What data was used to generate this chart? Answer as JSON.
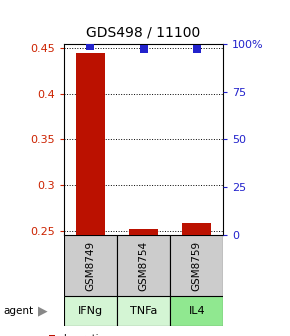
{
  "title": "GDS498 / 11100",
  "samples": [
    "GSM8749",
    "GSM8754",
    "GSM8759"
  ],
  "agents": [
    "IFNg",
    "TNFa",
    "IL4"
  ],
  "agent_colors": [
    "#d4f5d4",
    "#d4f5d4",
    "#90e890"
  ],
  "log_ratios": [
    0.445,
    0.252,
    0.258
  ],
  "percentile_values": [
    99,
    97,
    97
  ],
  "y_min": 0.245,
  "y_max": 0.455,
  "y_ticks_left": [
    0.25,
    0.3,
    0.35,
    0.4,
    0.45
  ],
  "y_ticks_right": [
    0,
    25,
    50,
    75,
    100
  ],
  "bar_color": "#bb1100",
  "dot_color": "#2222cc",
  "background_color": "#ffffff",
  "sample_box_color": "#cccccc",
  "left_label_color": "#cc2200",
  "right_label_color": "#2222cc",
  "bar_width": 0.55,
  "dot_size": 35
}
